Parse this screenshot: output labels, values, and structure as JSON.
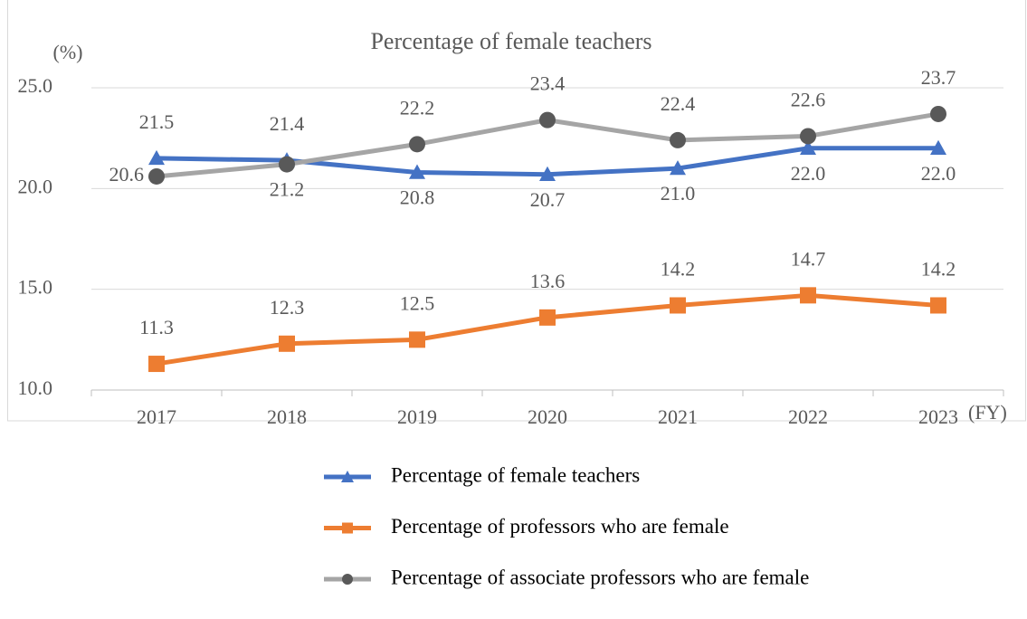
{
  "chart_data": {
    "type": "line",
    "title": "Percentage of female teachers",
    "y_label": "(%)",
    "x_label": "(FY)",
    "categories": [
      "2017",
      "2018",
      "2019",
      "2020",
      "2021",
      "2022",
      "2023"
    ],
    "series": [
      {
        "name": "Percentage of female teachers",
        "color": "#4472c4",
        "marker": "triangle",
        "values": [
          21.5,
          21.4,
          20.8,
          20.7,
          21.0,
          22.0,
          22.0
        ],
        "value_labels": [
          "21.5",
          "21.4",
          "20.8",
          "20.7",
          "21.0",
          "22.0",
          "22.0"
        ]
      },
      {
        "name": "Percentage of professors who are female",
        "color": "#ed7d31",
        "marker": "square",
        "values": [
          11.3,
          12.3,
          12.5,
          13.6,
          14.2,
          14.7,
          14.2
        ],
        "value_labels": [
          "11.3",
          "12.3",
          "12.5",
          "13.6",
          "14.2",
          "14.7",
          "14.2"
        ]
      },
      {
        "name": "Percentage of associate professors who are female",
        "color": "#a5a5a5",
        "marker_color": "#595959",
        "marker": "circle",
        "values": [
          20.6,
          21.2,
          22.2,
          23.4,
          22.4,
          22.6,
          23.7
        ],
        "value_labels": [
          "20.6",
          "21.2",
          "22.2",
          "23.4",
          "22.4",
          "22.6",
          "23.7"
        ]
      }
    ],
    "ylim": [
      10,
      25
    ],
    "yticks": [
      {
        "value": 10,
        "label": "10.0"
      },
      {
        "value": 15,
        "label": "15.0"
      },
      {
        "value": 20,
        "label": "20.0"
      },
      {
        "value": 25,
        "label": "25.0"
      }
    ],
    "grid": true
  }
}
